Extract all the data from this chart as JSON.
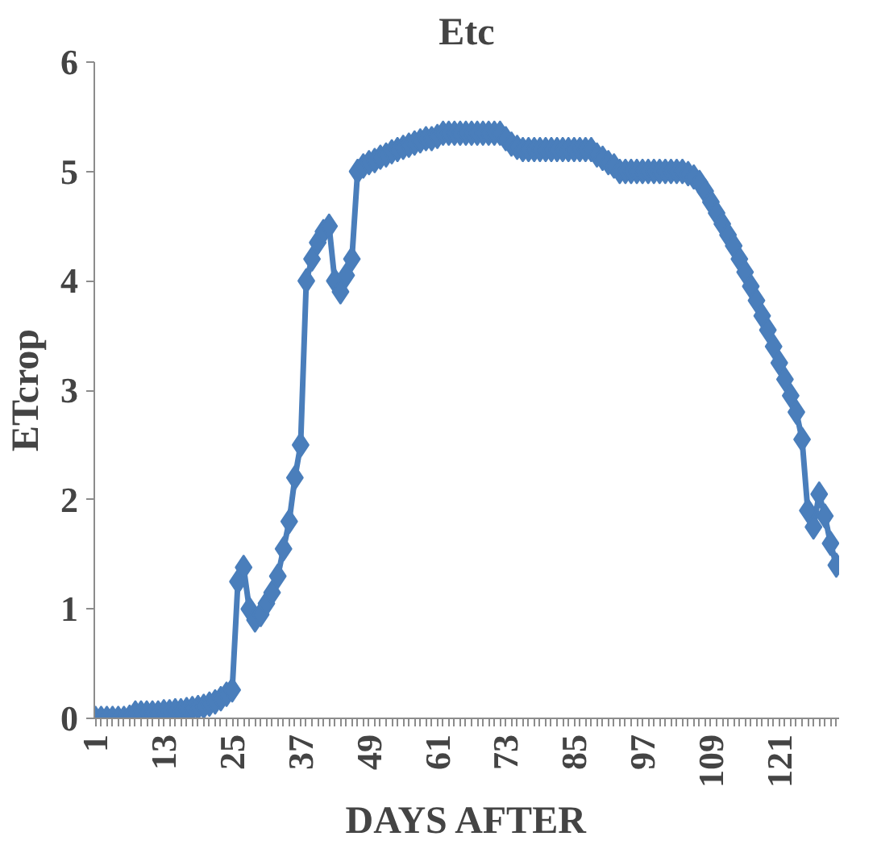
{
  "chart_data": {
    "type": "line",
    "title": "Etc",
    "xlabel": "DAYS AFTER",
    "ylabel": "ETcrop",
    "marker": "diamond",
    "categories": [
      "1",
      null,
      null,
      null,
      null,
      null,
      null,
      null,
      null,
      null,
      null,
      null,
      "13",
      null,
      null,
      null,
      null,
      null,
      null,
      null,
      null,
      null,
      null,
      null,
      "25",
      null,
      null,
      null,
      null,
      null,
      null,
      null,
      null,
      null,
      null,
      null,
      "37",
      null,
      null,
      null,
      null,
      null,
      null,
      null,
      null,
      null,
      null,
      null,
      "49",
      null,
      null,
      null,
      null,
      null,
      null,
      null,
      null,
      null,
      null,
      null,
      "61",
      null,
      null,
      null,
      null,
      null,
      null,
      null,
      null,
      null,
      null,
      null,
      "73",
      null,
      null,
      null,
      null,
      null,
      null,
      null,
      null,
      null,
      null,
      null,
      "85",
      null,
      null,
      null,
      null,
      null,
      null,
      null,
      null,
      null,
      null,
      null,
      "97",
      null,
      null,
      null,
      null,
      null,
      null,
      null,
      null,
      null,
      null,
      null,
      "109",
      null,
      null,
      null,
      null,
      null,
      null,
      null,
      null,
      null,
      null,
      null,
      "121",
      null,
      null,
      null,
      null,
      null,
      null,
      null,
      null,
      null,
      null
    ],
    "ylim": [
      0,
      6
    ],
    "yticks": [
      0,
      1,
      2,
      3,
      4,
      5,
      6
    ],
    "series": [
      {
        "color": "#4a7ebb",
        "values": [
          0,
          0,
          0,
          0,
          0,
          0,
          0.01,
          0.05,
          0.05,
          0.05,
          0.05,
          0.05,
          0.06,
          0.06,
          0.07,
          0.07,
          0.08,
          0.09,
          0.1,
          0.11,
          0.13,
          0.15,
          0.18,
          0.22,
          0.26,
          1.25,
          1.38,
          1.0,
          0.9,
          0.95,
          1.05,
          1.15,
          1.3,
          1.55,
          1.8,
          2.2,
          2.5,
          4.0,
          4.2,
          4.35,
          4.45,
          4.5,
          4.0,
          3.9,
          4.05,
          4.2,
          5.0,
          5.05,
          5.08,
          5.1,
          5.13,
          5.15,
          5.18,
          5.2,
          5.22,
          5.24,
          5.26,
          5.28,
          5.3,
          5.3,
          5.32,
          5.35,
          5.35,
          5.35,
          5.35,
          5.35,
          5.35,
          5.35,
          5.35,
          5.35,
          5.35,
          5.35,
          5.3,
          5.25,
          5.22,
          5.2,
          5.2,
          5.2,
          5.2,
          5.2,
          5.2,
          5.2,
          5.2,
          5.2,
          5.2,
          5.2,
          5.2,
          5.2,
          5.15,
          5.12,
          5.08,
          5.05,
          5.0,
          5.0,
          5.0,
          5.0,
          5.0,
          5.0,
          5.0,
          5.0,
          5.0,
          5.0,
          5.0,
          5.0,
          4.98,
          4.95,
          4.9,
          4.82,
          4.72,
          4.62,
          4.52,
          4.42,
          4.32,
          4.2,
          4.08,
          3.95,
          3.82,
          3.68,
          3.55,
          3.4,
          3.25,
          3.1,
          2.95,
          2.8,
          2.55,
          1.9,
          1.75,
          2.05,
          1.85,
          1.6,
          1.4
        ]
      }
    ]
  }
}
